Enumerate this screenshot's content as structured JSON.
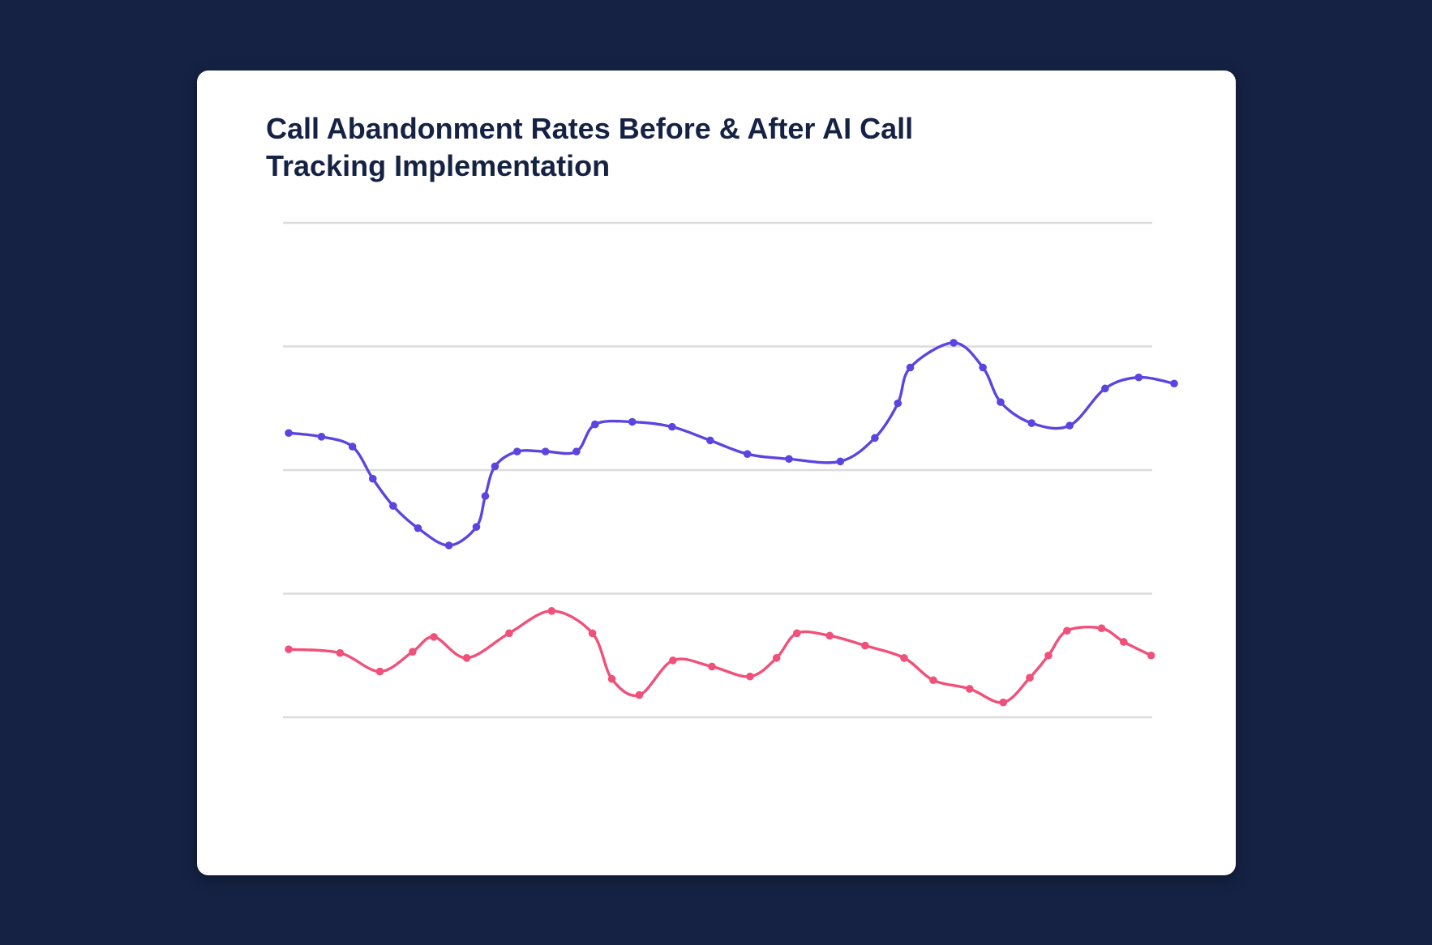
{
  "chart_data": {
    "type": "line",
    "title": "Call Abandonment Rates Before & After AI Call Tracking Implementation",
    "xlim": [
      0,
      100
    ],
    "ylim": [
      0,
      4
    ],
    "yticks": [
      0,
      1,
      2,
      3,
      4
    ],
    "grid": true,
    "smooth": true,
    "series": [
      {
        "color": "#5b45e0",
        "x": [
          0,
          3.7,
          7.2,
          9.5,
          11.8,
          14.6,
          18.1,
          21.2,
          22.2,
          23.3,
          25.8,
          29.0,
          32.5,
          34.6,
          38.8,
          43.3,
          47.6,
          51.8,
          56.5,
          62.3,
          66.2,
          68.8,
          70.2,
          75.1,
          78.4,
          80.4,
          83.9,
          88.2,
          92.2,
          96.0,
          100
        ],
        "values": [
          2.3,
          2.27,
          2.19,
          1.93,
          1.71,
          1.53,
          1.39,
          1.54,
          1.79,
          2.03,
          2.15,
          2.15,
          2.15,
          2.37,
          2.39,
          2.35,
          2.24,
          2.13,
          2.09,
          2.07,
          2.26,
          2.54,
          2.83,
          3.03,
          2.83,
          2.55,
          2.38,
          2.36,
          2.66,
          2.75,
          2.7
        ]
      },
      {
        "color": "#f0507a",
        "x": [
          0,
          5.8,
          10.3,
          14.0,
          16.4,
          20.1,
          24.9,
          29.7,
          34.3,
          36.5,
          39.6,
          43.4,
          47.8,
          52.1,
          55.1,
          57.4,
          61.1,
          65.1,
          69.5,
          72.8,
          76.9,
          80.7,
          83.7,
          85.8,
          87.9,
          91.8,
          94.3,
          97.4
        ],
        "values": [
          0.55,
          0.52,
          0.37,
          0.53,
          0.65,
          0.48,
          0.68,
          0.86,
          0.68,
          0.31,
          0.18,
          0.46,
          0.41,
          0.33,
          0.48,
          0.68,
          0.66,
          0.58,
          0.48,
          0.3,
          0.23,
          0.12,
          0.32,
          0.5,
          0.7,
          0.72,
          0.61,
          0.5
        ]
      }
    ]
  }
}
